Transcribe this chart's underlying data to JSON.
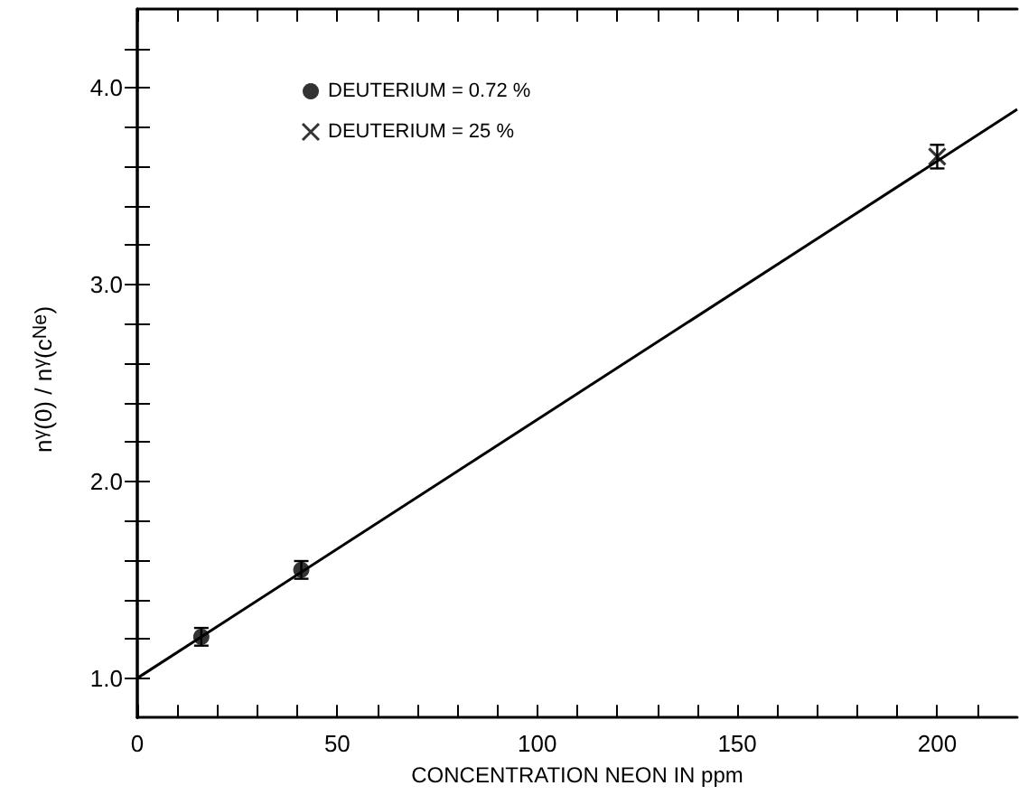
{
  "chart_data": {
    "type": "scatter",
    "xlabel": "CONCENTRATION NEON IN ppm",
    "ylabel": "n$_{γ}$(0) / n$_{γ}$(c$_{Ne}$)",
    "series": [
      {
        "name": "DEUTERIUM = 0.72 %",
        "color": "#000000",
        "marker": "circle",
        "x": [
          16,
          41
        ],
        "values": [
          1.21,
          1.55
        ],
        "errors": [
          0.045,
          0.045
        ]
      },
      {
        "name": "DEUTERIUM = 25 %",
        "color": "#000000",
        "marker": "cross",
        "x": [
          200
        ],
        "values": [
          3.65
        ],
        "errors": [
          0.06
        ]
      },
      {
        "type": "line",
        "color": "#000000",
        "marker": "none",
        "line_style": "solid",
        "x": [
          0,
          220
        ],
        "values": [
          1.0,
          3.89
        ]
      }
    ],
    "xlim": [
      0,
      220
    ],
    "xticks": [
      0,
      {
        "value": 10,
        "label": null
      },
      {
        "value": 20,
        "label": null
      },
      {
        "value": 30,
        "label": null
      },
      {
        "value": 40,
        "label": null
      },
      50,
      {
        "value": 60,
        "label": null
      },
      {
        "value": 70,
        "label": null
      },
      {
        "value": 80,
        "label": null
      },
      {
        "value": 90,
        "label": null
      },
      100,
      {
        "value": 110,
        "label": null
      },
      {
        "value": 120,
        "label": null
      },
      {
        "value": 130,
        "label": null
      },
      {
        "value": 140,
        "label": null
      },
      150,
      {
        "value": 160,
        "label": null
      },
      {
        "value": 170,
        "label": null
      },
      {
        "value": 180,
        "label": null
      },
      {
        "value": 190,
        "label": null
      },
      200,
      {
        "value": 210,
        "label": null
      }
    ],
    "ylim": [
      0.8,
      4.4
    ],
    "yticks": [
      {
        "value": 1,
        "label": "1.0"
      },
      {
        "value": 1.2,
        "label": null
      },
      {
        "value": 1.4,
        "label": null
      },
      {
        "value": 1.6,
        "label": null
      },
      {
        "value": 1.8,
        "label": null
      },
      {
        "value": 2,
        "label": "2.0"
      },
      {
        "value": 2.2,
        "label": null
      },
      {
        "value": 2.4,
        "label": null
      },
      {
        "value": 2.6,
        "label": null
      },
      {
        "value": 2.8,
        "label": null
      },
      {
        "value": 3,
        "label": "3.0"
      },
      {
        "value": 3.2,
        "label": null
      },
      {
        "value": 3.4,
        "label": null
      },
      {
        "value": 3.6,
        "label": null
      },
      {
        "value": 3.8,
        "label": null
      },
      {
        "value": 4,
        "label": "4.0"
      },
      {
        "value": 4.2,
        "label": null
      }
    ],
    "grid": false,
    "legend": "top left"
  }
}
